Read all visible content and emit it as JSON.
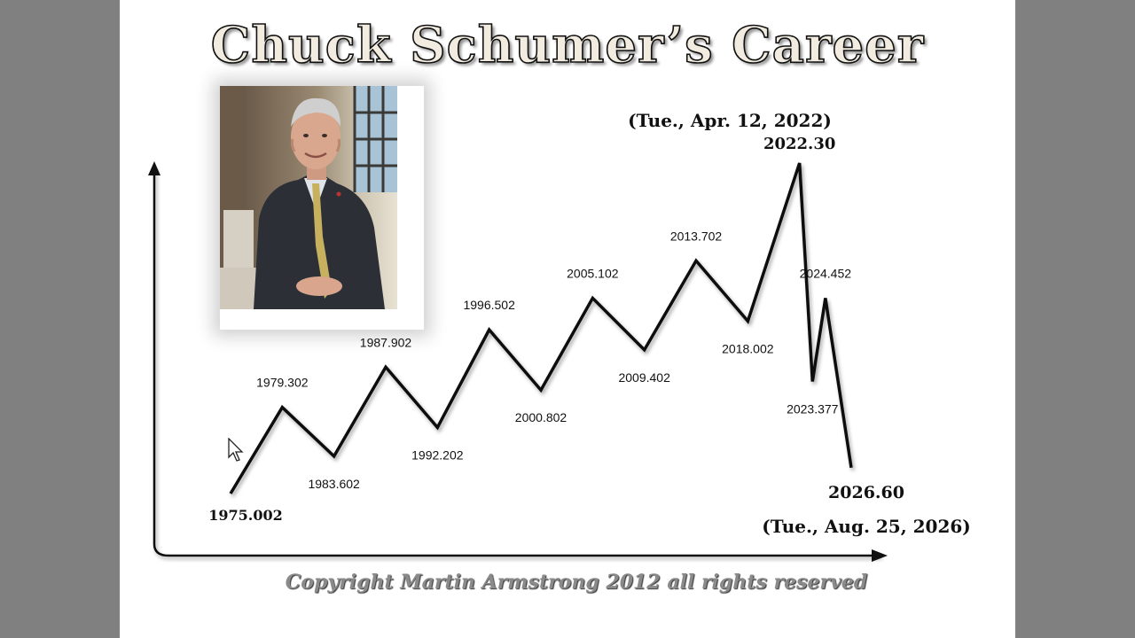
{
  "title": "Chuck Schumer’s Career",
  "copyright": "Copyright Martin Armstrong 2012 all rights reserved",
  "chart_data": {
    "type": "line",
    "title": "Chuck Schumer’s Career",
    "xlabel": "",
    "ylabel": "",
    "grid": false,
    "legend": "none",
    "series": [
      {
        "values": [
          {
            "label": "1975.002",
            "level": 0
          },
          {
            "label": "1979.302",
            "level": 3
          },
          {
            "label": "1983.602",
            "level": 1.3
          },
          {
            "label": "1987.902",
            "level": 4.4
          },
          {
            "label": "1992.202",
            "level": 2.3
          },
          {
            "label": "1996.502",
            "level": 5.7
          },
          {
            "label": "2000.802",
            "level": 3.6
          },
          {
            "label": "2005.102",
            "level": 6.8
          },
          {
            "label": "2009.402",
            "level": 5.0
          },
          {
            "label": "2013.702",
            "level": 8.1
          },
          {
            "label": "2018.002",
            "level": 6.0
          },
          {
            "label": "2022.30",
            "level": 11.5
          },
          {
            "label": "2023.377",
            "level": 3.9
          },
          {
            "label": "2024.452",
            "level": 6.8
          },
          {
            "label": "2026.60",
            "level": 0.9
          }
        ]
      }
    ],
    "annotations": {
      "peak_date": "(Tue., Apr. 12,  2022)",
      "peak_value": "2022.30",
      "end_value": "2026.60",
      "end_date": "(Tue., Aug. 25,  2026)"
    }
  },
  "colors": {
    "line": "#111111",
    "background": "#ffffff",
    "frame": "#808080",
    "copyright": "#8a8a8a"
  }
}
